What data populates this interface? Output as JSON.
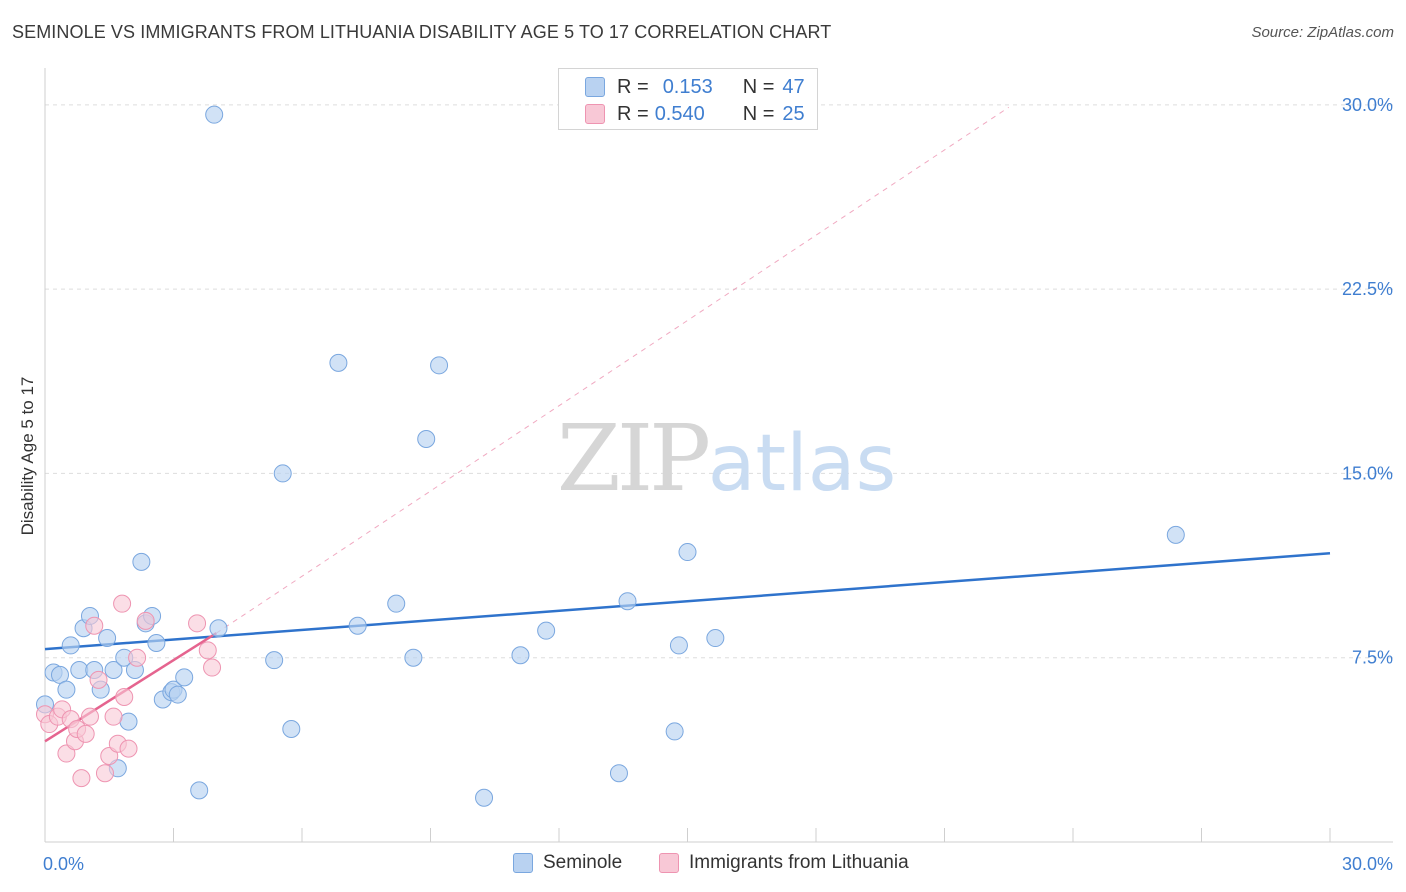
{
  "header": {
    "title": "SEMINOLE VS IMMIGRANTS FROM LITHUANIA DISABILITY AGE 5 TO 17 CORRELATION CHART",
    "source": "Source: ZipAtlas.com"
  },
  "watermark": {
    "zip": "ZIP",
    "atlas": "atlas"
  },
  "legend": {
    "rows": [
      {
        "r_label": "R =",
        "r_value": "0.153",
        "n_label": "N =",
        "n_value": "47"
      },
      {
        "r_label": "R =",
        "r_value": "0.540",
        "n_label": "N =",
        "n_value": "25"
      }
    ]
  },
  "bottom_legend": [
    "Seminole",
    "Immigrants from Lithuania"
  ],
  "colors": {
    "blue_fill": "#b9d2f1",
    "blue_stroke": "#7aa7df",
    "blue_line": "#2f73cc",
    "pink_fill": "#f8c8d6",
    "pink_stroke": "#ee94b1",
    "pink_line": "#e5648f",
    "axis_text": "#3f7ed0",
    "grid": "#dddddd"
  },
  "chart_data": {
    "type": "scatter",
    "title": "SEMINOLE VS IMMIGRANTS FROM LITHUANIA DISABILITY AGE 5 TO 17 CORRELATION CHART",
    "xlabel": "",
    "ylabel": "Disability Age 5 to 17",
    "xlim": [
      0,
      30
    ],
    "ylim": [
      0,
      31.5
    ],
    "x_tick_labels": [
      "0.0%",
      "30.0%"
    ],
    "y_ticks": [
      7.5,
      15.0,
      22.5,
      30.0
    ],
    "y_tick_labels": [
      "7.5%",
      "15.0%",
      "22.5%",
      "30.0%"
    ],
    "series": [
      {
        "name": "Seminole",
        "R": 0.153,
        "N": 47,
        "points": [
          [
            0.0,
            5.6
          ],
          [
            0.2,
            6.9
          ],
          [
            0.35,
            6.8
          ],
          [
            0.5,
            6.2
          ],
          [
            0.6,
            8.0
          ],
          [
            0.8,
            7.0
          ],
          [
            0.9,
            8.7
          ],
          [
            1.05,
            9.2
          ],
          [
            1.15,
            7.0
          ],
          [
            1.3,
            6.2
          ],
          [
            1.45,
            8.3
          ],
          [
            1.6,
            7.0
          ],
          [
            1.7,
            3.0
          ],
          [
            1.85,
            7.5
          ],
          [
            1.95,
            4.9
          ],
          [
            2.1,
            7.0
          ],
          [
            2.25,
            11.4
          ],
          [
            2.35,
            8.9
          ],
          [
            2.5,
            9.2
          ],
          [
            2.6,
            8.1
          ],
          [
            2.75,
            5.8
          ],
          [
            2.95,
            6.1
          ],
          [
            3.0,
            6.2
          ],
          [
            3.1,
            6.0
          ],
          [
            3.25,
            6.7
          ],
          [
            3.6,
            2.1
          ],
          [
            3.95,
            29.6
          ],
          [
            4.05,
            8.7
          ],
          [
            5.35,
            7.4
          ],
          [
            5.55,
            15.0
          ],
          [
            5.75,
            4.6
          ],
          [
            6.85,
            19.5
          ],
          [
            7.3,
            8.8
          ],
          [
            8.2,
            9.7
          ],
          [
            8.6,
            7.5
          ],
          [
            8.9,
            16.4
          ],
          [
            9.2,
            19.4
          ],
          [
            10.25,
            1.8
          ],
          [
            11.1,
            7.6
          ],
          [
            11.7,
            8.6
          ],
          [
            13.4,
            2.8
          ],
          [
            13.6,
            9.8
          ],
          [
            14.7,
            4.5
          ],
          [
            14.8,
            8.0
          ],
          [
            15.0,
            11.8
          ],
          [
            15.65,
            8.3
          ],
          [
            26.4,
            12.5
          ]
        ]
      },
      {
        "name": "Immigrants from Lithuania",
        "R": 0.54,
        "N": 25,
        "points": [
          [
            0.0,
            5.2
          ],
          [
            0.1,
            4.8
          ],
          [
            0.3,
            5.1
          ],
          [
            0.4,
            5.4
          ],
          [
            0.5,
            3.6
          ],
          [
            0.6,
            5.0
          ],
          [
            0.7,
            4.1
          ],
          [
            0.75,
            4.6
          ],
          [
            0.85,
            2.6
          ],
          [
            0.95,
            4.4
          ],
          [
            1.05,
            5.1
          ],
          [
            1.15,
            8.8
          ],
          [
            1.25,
            6.6
          ],
          [
            1.4,
            2.8
          ],
          [
            1.5,
            3.5
          ],
          [
            1.6,
            5.1
          ],
          [
            1.7,
            4.0
          ],
          [
            1.8,
            9.7
          ],
          [
            1.85,
            5.9
          ],
          [
            1.95,
            3.8
          ],
          [
            2.15,
            7.5
          ],
          [
            2.35,
            9.0
          ],
          [
            3.55,
            8.9
          ],
          [
            3.8,
            7.8
          ],
          [
            3.9,
            7.1
          ]
        ]
      }
    ],
    "trend_lines": [
      {
        "series": "Seminole",
        "x": [
          0,
          30
        ],
        "y": [
          7.85,
          11.75
        ]
      },
      {
        "series": "Immigrants from Lithuania",
        "x": [
          0,
          4.0
        ],
        "y": [
          4.1,
          8.5
        ]
      },
      {
        "series": "Immigrants from Lithuania (extrapolated)",
        "x": [
          4.0,
          22.5
        ],
        "y": [
          8.5,
          29.9
        ]
      }
    ]
  }
}
